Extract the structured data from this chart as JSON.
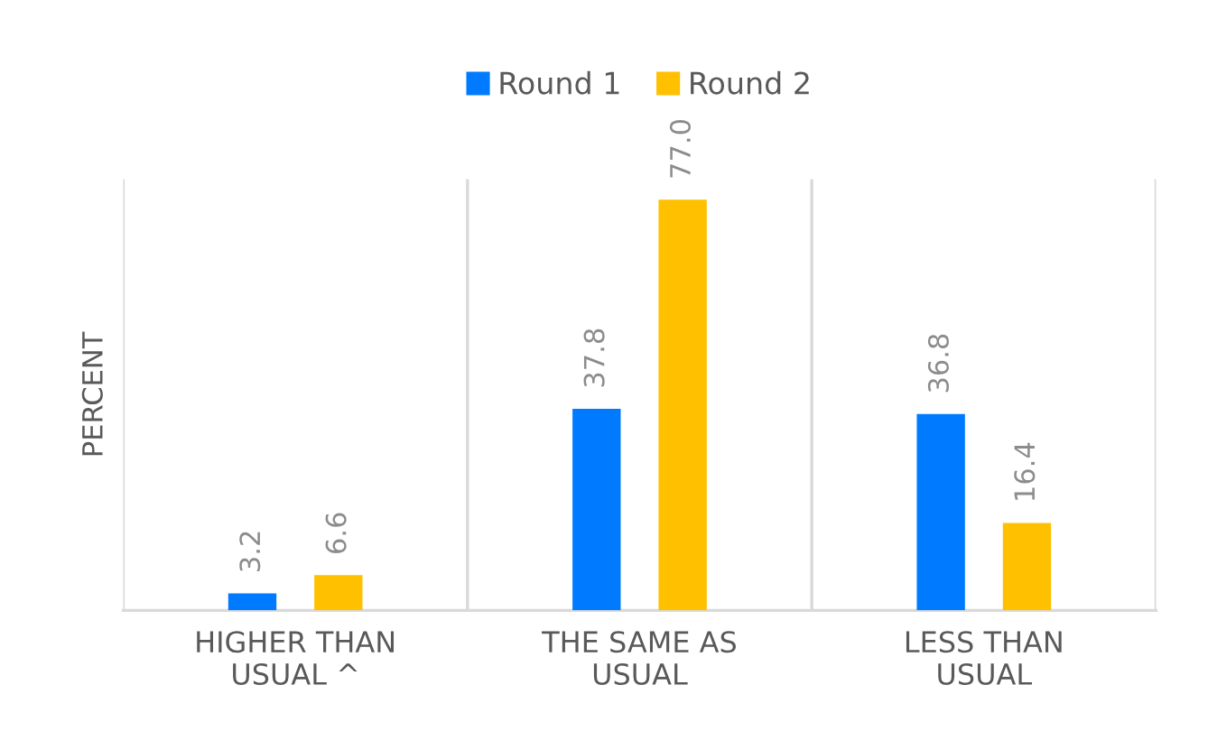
{
  "chart_data": {
    "type": "bar",
    "ylabel": "PERCENT",
    "categories": [
      "HIGHER THAN\nUSUAL ^",
      "THE SAME AS\nUSUAL",
      "LESS THAN\nUSUAL"
    ],
    "series": [
      {
        "name": "Round 1",
        "color": "#007bff",
        "values": [
          3.2,
          37.8,
          36.8
        ],
        "value_labels": [
          "3.2",
          "37.8",
          "36.8"
        ]
      },
      {
        "name": "Round 2",
        "color": "#ffc000",
        "values": [
          6.6,
          77.0,
          16.4
        ],
        "value_labels": [
          "6.6",
          "77.0",
          "16.4"
        ]
      }
    ],
    "legend": "top",
    "grid": "x",
    "tick_labels": "x"
  }
}
